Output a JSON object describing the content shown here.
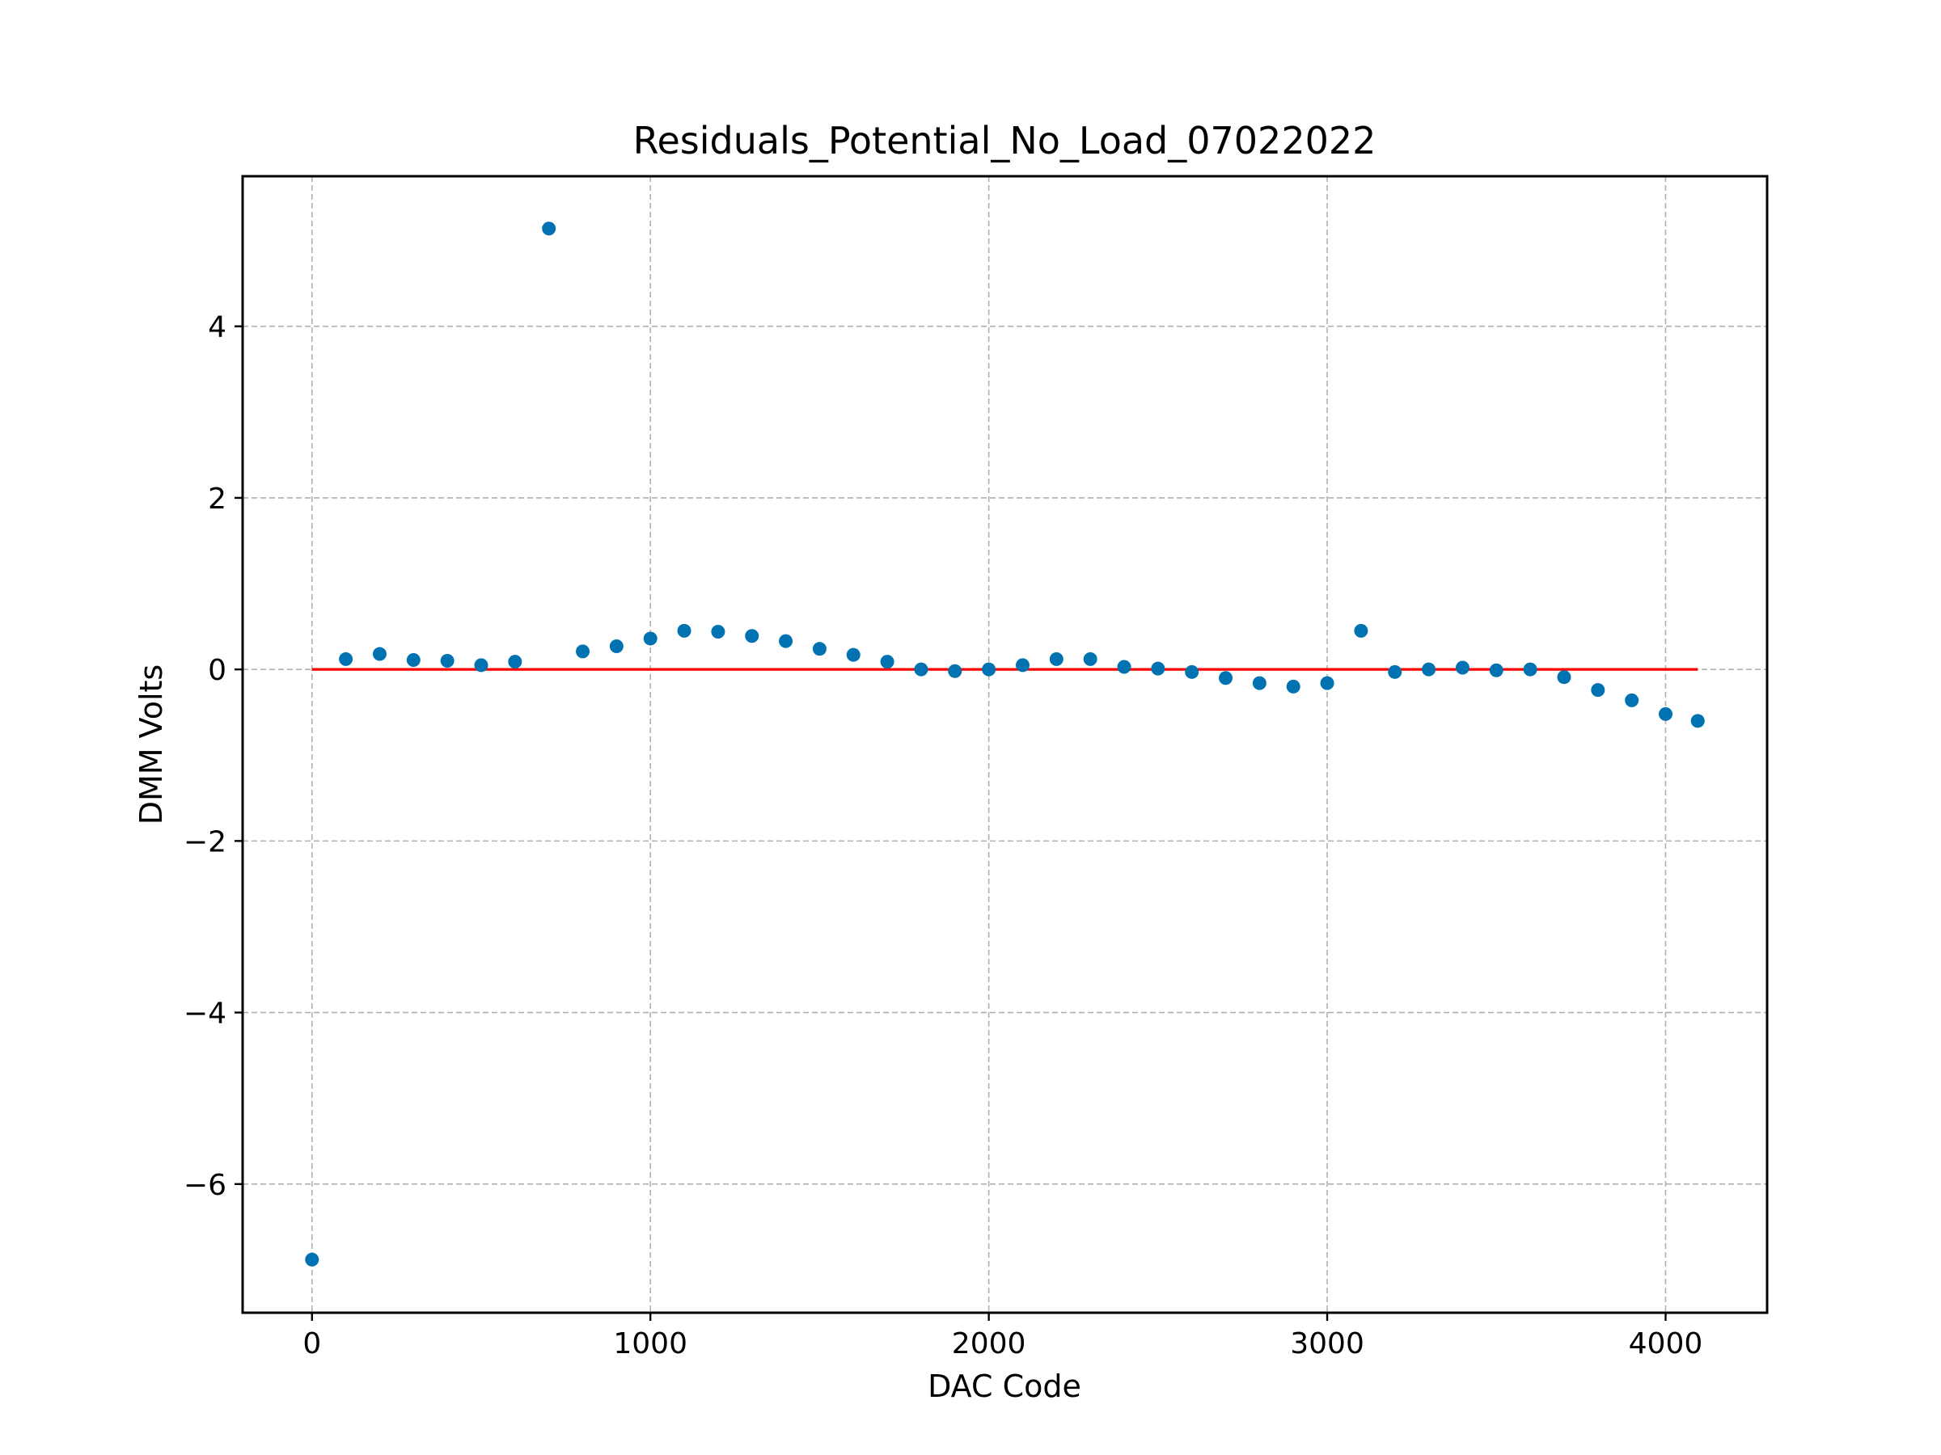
{
  "chart_data": {
    "type": "scatter",
    "title": "Residuals_Potential_No_Load_07022022",
    "xlabel": "DAC Code",
    "ylabel": "DMM Volts",
    "xlim": [
      -205,
      4300
    ],
    "ylim": [
      -7.5,
      5.75
    ],
    "xticks": [
      0,
      1000,
      2000,
      3000,
      4000
    ],
    "xtick_labels": [
      "0",
      "1000",
      "2000",
      "3000",
      "4000"
    ],
    "yticks": [
      -6,
      -4,
      -2,
      0,
      2,
      4
    ],
    "ytick_labels": [
      "−6",
      "−4",
      "−2",
      "0",
      "2",
      "4"
    ],
    "grid": true,
    "legend": "none",
    "colors": {
      "points": "#0072B2",
      "reference_line": "#FF0000",
      "grid": "#B0B0B0",
      "axes": "#000000"
    },
    "series": [
      {
        "type": "scatter",
        "x": [
          0,
          100,
          200,
          300,
          400,
          500,
          600,
          700,
          800,
          900,
          1000,
          1100,
          1200,
          1300,
          1400,
          1500,
          1600,
          1700,
          1800,
          1900,
          2000,
          2100,
          2200,
          2300,
          2400,
          2500,
          2600,
          2700,
          2800,
          2900,
          3000,
          3100,
          3200,
          3300,
          3400,
          3500,
          3600,
          3700,
          3800,
          3900,
          4000,
          4095
        ],
        "y": [
          -6.88,
          0.12,
          0.18,
          0.11,
          0.1,
          0.05,
          0.09,
          5.14,
          0.21,
          0.27,
          0.36,
          0.45,
          0.44,
          0.39,
          0.33,
          0.24,
          0.17,
          0.09,
          0.0,
          -0.02,
          0.0,
          0.05,
          0.12,
          0.12,
          0.03,
          0.01,
          -0.03,
          -0.1,
          -0.16,
          -0.2,
          -0.16,
          0.45,
          -0.03,
          0.0,
          0.02,
          -0.01,
          0.0,
          -0.09,
          -0.24,
          -0.36,
          -0.52,
          -0.6
        ]
      },
      {
        "type": "line",
        "x": [
          0,
          4095
        ],
        "y": [
          0,
          0
        ]
      }
    ]
  }
}
